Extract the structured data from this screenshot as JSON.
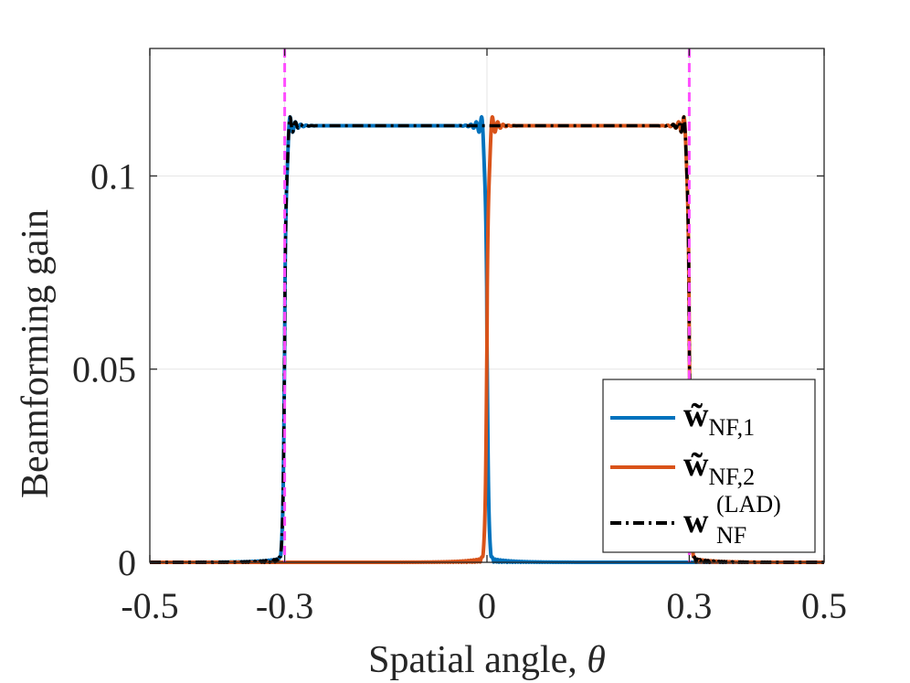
{
  "chart_data": {
    "type": "line",
    "title": "",
    "xlabel": "Spatial angle, ",
    "xlabel_symbol": "θ",
    "ylabel": "Beamforming gain",
    "xlim": [
      -0.5,
      0.5
    ],
    "ylim": [
      0,
      0.133
    ],
    "xticks": [
      -0.5,
      -0.3,
      0,
      0.3,
      0.5
    ],
    "xtick_labels": [
      "-0.5",
      "-0.3",
      "0",
      "0.3",
      "0.5"
    ],
    "yticks": [
      0,
      0.05,
      0.1
    ],
    "ytick_labels": [
      "0",
      "0.05",
      "0.1"
    ],
    "grid": true,
    "legend_position": "bottom-right",
    "reference_lines": [
      {
        "x": -0.3,
        "color": "#FF4DFF",
        "style": "dashed"
      },
      {
        "x": 0.3,
        "color": "#FF4DFF",
        "style": "dashed"
      }
    ],
    "series": [
      {
        "name": "w̃NF,1",
        "legend_main": "w̃",
        "legend_sub": "NF,1",
        "color": "#0072BD",
        "style": "solid",
        "x_range": [
          -0.3,
          0
        ],
        "plateau": 0.113,
        "peak": 0.121
      },
      {
        "name": "w̃NF,2",
        "legend_main": "w̃",
        "legend_sub": "NF,2",
        "color": "#D95319",
        "style": "solid",
        "x_range": [
          0,
          0.3
        ],
        "plateau": 0.113,
        "peak": 0.121
      },
      {
        "name": "wNF(LAD)",
        "legend_main": "w",
        "legend_sub": "NF",
        "legend_sup": "(LAD)",
        "color": "#000000",
        "style": "dashdot",
        "x_range": [
          -0.3,
          0.3
        ],
        "plateau": 0.113,
        "peak": 0.121
      }
    ]
  }
}
